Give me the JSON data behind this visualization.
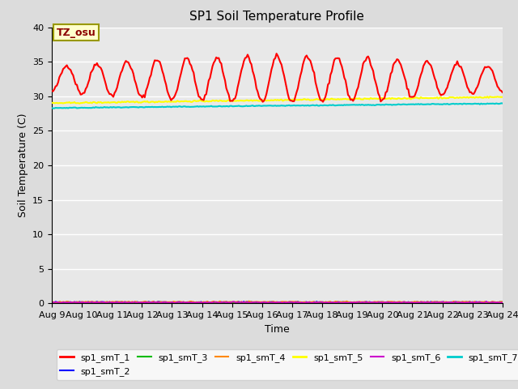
{
  "title": "SP1 Soil Temperature Profile",
  "xlabel": "Time",
  "ylabel": "Soil Temperature (C)",
  "annotation": "TZ_osu",
  "ylim": [
    0,
    40
  ],
  "yticks": [
    0,
    5,
    10,
    15,
    20,
    25,
    30,
    35,
    40
  ],
  "xtick_labels": [
    "Aug 9",
    "Aug 10",
    "Aug 11",
    "Aug 12",
    "Aug 13",
    "Aug 14",
    "Aug 15",
    "Aug 16",
    "Aug 17",
    "Aug 18",
    "Aug 19",
    "Aug 20",
    "Aug 21",
    "Aug 22",
    "Aug 23",
    "Aug 24"
  ],
  "bg_color": "#e8e8e8",
  "grid_color": "#ffffff",
  "legend_labels": [
    "sp1_smT_1",
    "sp1_smT_2",
    "sp1_smT_3",
    "sp1_smT_4",
    "sp1_smT_5",
    "sp1_smT_6",
    "sp1_smT_7"
  ],
  "legend_colors": [
    "#ff0000",
    "#0000ff",
    "#00bb00",
    "#ff8800",
    "#ffff00",
    "#cc00cc",
    "#00cccc"
  ],
  "legend_lws": [
    1.5,
    1.2,
    1.2,
    1.2,
    1.5,
    1.2,
    1.5
  ]
}
